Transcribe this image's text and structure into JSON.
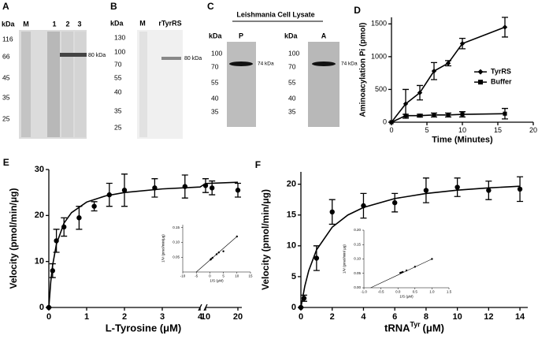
{
  "panels": {
    "A": {
      "label": "A",
      "unit": "kDa",
      "lanes": [
        "M",
        "1",
        "2",
        "3"
      ],
      "markers": [
        116,
        66,
        45,
        35,
        25
      ],
      "band": "80 kDa"
    },
    "B": {
      "label": "B",
      "unit": "kDa",
      "lanes": [
        "M",
        "rTyrRS"
      ],
      "markers": [
        130,
        100,
        70,
        55,
        40,
        35,
        25
      ],
      "band": "80 kDa"
    },
    "C": {
      "label": "C",
      "title": "Leishmania Cell Lysate",
      "blots": [
        {
          "unit": "kDa",
          "lane": "P",
          "markers": [
            100,
            70,
            55,
            40,
            35
          ],
          "band": "74 kDa"
        },
        {
          "unit": "kDa",
          "lane": "A",
          "markers": [
            100,
            70,
            55,
            40,
            35
          ],
          "band": "74 kDa"
        }
      ]
    }
  },
  "chart_data": [
    {
      "type": "line",
      "panel": "D",
      "xlabel": "Time (Minutes)",
      "ylabel": "Aminoacylation Pi (pmol)",
      "xlim": [
        0,
        20
      ],
      "xticks": [
        0,
        5,
        10,
        15,
        20
      ],
      "ylim": [
        0,
        1600
      ],
      "yticks": [
        0,
        500,
        1000,
        1500
      ],
      "legend": "right",
      "series": [
        {
          "name": "TyrRS",
          "color": "#000000",
          "marker": "diamond",
          "line": true,
          "x": [
            0,
            2,
            4,
            6,
            8,
            10,
            16
          ],
          "values": [
            0,
            280,
            450,
            780,
            900,
            1200,
            1450
          ],
          "errors": [
            0,
            220,
            110,
            130,
            40,
            80,
            150
          ]
        },
        {
          "name": "Buffer",
          "color": "#000000",
          "marker": "square",
          "line": true,
          "x": [
            0,
            2,
            4,
            6,
            8,
            10,
            16
          ],
          "values": [
            0,
            100,
            100,
            110,
            110,
            120,
            130
          ],
          "errors": [
            0,
            20,
            20,
            30,
            30,
            40,
            80
          ]
        }
      ]
    },
    {
      "type": "scatter",
      "panel": "E",
      "bold": true,
      "xlabel": "L-Tyrosine (μM)",
      "ylabel": "Velocity (pmol/min/μg)",
      "xlim": [
        0,
        20
      ],
      "xbreak": [
        4,
        10
      ],
      "xticks": [
        0,
        1,
        2,
        3,
        4,
        10,
        20
      ],
      "ylim": [
        0,
        30
      ],
      "yticks": [
        0,
        10,
        20,
        30
      ],
      "series": [
        {
          "color": "#000000",
          "marker": "circle",
          "line": false,
          "x": [
            0,
            0.1,
            0.2,
            0.4,
            0.8,
            1.2,
            1.6,
            2,
            2.8,
            3.6,
            10,
            12,
            20
          ],
          "values": [
            0,
            8,
            14.5,
            17.5,
            19.5,
            22,
            24.5,
            25.5,
            26,
            26.3,
            26.5,
            26,
            25.5
          ],
          "errors": [
            0,
            1.5,
            2.5,
            2,
            2.5,
            1,
            2.5,
            3.5,
            2,
            2.5,
            1.5,
            1.5,
            1.5
          ]
        },
        {
          "color": "#000000",
          "marker": "none",
          "line": true,
          "x": [
            0,
            0.05,
            0.1,
            0.2,
            0.4,
            0.6,
            1,
            1.5,
            2,
            3,
            4,
            10,
            20
          ],
          "values": [
            0,
            5.5,
            9.17,
            13.75,
            18.33,
            20.63,
            22.92,
            24.26,
            25,
            25.78,
            26.19,
            26.96,
            27.23
          ]
        }
      ]
    },
    {
      "type": "scatter",
      "xlabel": "1/S (μM)",
      "ylabel": "1/V (pmol/min/μg)",
      "xlim": [
        -10,
        15
      ],
      "xticks": [
        -10,
        -5,
        0,
        5,
        10,
        15
      ],
      "ylim": [
        0,
        0.16
      ],
      "yticks": [
        {
          "value": 0.05,
          "label": "0.05"
        },
        {
          "value": 0.1,
          "label": "0.10"
        },
        {
          "value": 0.15,
          "label": "0.15"
        }
      ],
      "series": [
        {
          "color": "#000000",
          "marker": "dot",
          "line": false,
          "x": [
            0.28,
            0.5,
            1,
            2.5,
            3.3,
            5,
            10
          ],
          "values": [
            0.042,
            0.044,
            0.048,
            0.06,
            0.066,
            0.07,
            0.12
          ]
        },
        {
          "color": "#000000",
          "marker": "none",
          "line": true,
          "x": [
            -5,
            10
          ],
          "values": [
            0,
            0.12
          ]
        }
      ]
    },
    {
      "type": "scatter",
      "panel": "F",
      "bold": true,
      "xlabel": "tRNA",
      "xlabel_sup": "Tyr",
      "xlabel_unit": "(μM)",
      "ylabel": "Velocity (pmol/min/μg)",
      "xlim": [
        0,
        14.5
      ],
      "xticks": [
        0,
        2,
        4,
        6,
        8,
        10,
        12,
        14
      ],
      "ylim": [
        0,
        22
      ],
      "yticks": [
        0,
        5,
        10,
        15,
        20
      ],
      "series": [
        {
          "color": "#000000",
          "marker": "circle",
          "line": false,
          "x": [
            0,
            0.2,
            1,
            2,
            4,
            6,
            8,
            10,
            12,
            14
          ],
          "values": [
            0,
            1.5,
            8,
            15.5,
            16.5,
            17,
            19,
            19.5,
            19,
            19.2
          ],
          "errors": [
            0,
            0.5,
            2,
            2,
            2,
            1.5,
            2,
            1.5,
            1.5,
            2
          ]
        },
        {
          "color": "#000000",
          "marker": "none",
          "line": true,
          "x": [
            0,
            0.25,
            0.5,
            1,
            2,
            3,
            4,
            6,
            8,
            10,
            12,
            14
          ],
          "values": [
            0,
            3.47,
            5.97,
            9.35,
            13.03,
            15,
            16.23,
            17.67,
            18.49,
            19.03,
            19.4,
            19.67
          ]
        }
      ]
    },
    {
      "type": "scatter",
      "xlabel": "1/S (μM)",
      "ylabel": "1/V (pmol/min/ μg)",
      "xlim": [
        -1,
        1.5
      ],
      "xticks": [
        {
          "value": -1,
          "label": "-1.0"
        },
        {
          "value": -0.5,
          "label": "-0.5"
        },
        {
          "value": 0,
          "label": "0.0"
        },
        {
          "value": 0.5,
          "label": "0.5"
        },
        {
          "value": 1,
          "label": "1.0"
        },
        {
          "value": 1.5,
          "label": "1.5"
        }
      ],
      "ylim": [
        0,
        0.2
      ],
      "yticks": [
        {
          "value": 0,
          "label": "0.00"
        },
        {
          "value": 0.05,
          "label": "0.05"
        },
        {
          "value": 0.1,
          "label": "0.10"
        },
        {
          "value": 0.15,
          "label": "0.15"
        },
        {
          "value": 0.2,
          "label": "0.20"
        }
      ],
      "series": [
        {
          "color": "#000000",
          "marker": "dot",
          "line": false,
          "x": [
            0.07,
            0.1,
            0.14,
            0.25,
            0.5,
            1
          ],
          "values": [
            0.052,
            0.053,
            0.055,
            0.06,
            0.073,
            0.1
          ]
        },
        {
          "color": "#000000",
          "marker": "none",
          "line": true,
          "x": [
            -0.8,
            1
          ],
          "values": [
            0,
            0.1
          ]
        }
      ]
    }
  ]
}
